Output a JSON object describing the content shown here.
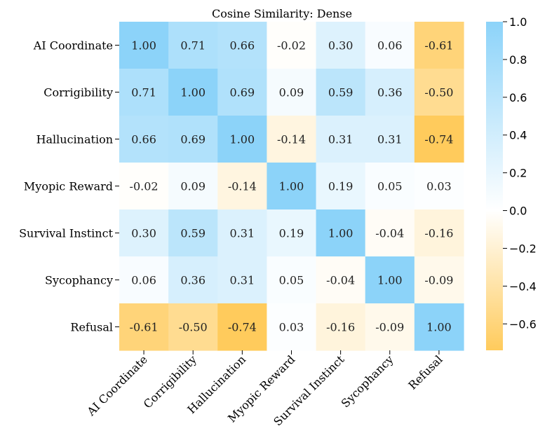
{
  "chart_data": {
    "type": "heatmap",
    "title": "Cosine Similarity: Dense",
    "row_labels": [
      "AI Coordinate",
      "Corrigibility",
      "Hallucination",
      "Myopic Reward",
      "Survival Instinct",
      "Sycophancy",
      "Refusal"
    ],
    "col_labels": [
      "AI Coordinate",
      "Corrigibility",
      "Hallucination",
      "Myopic Reward",
      "Survival Instinct",
      "Sycophancy",
      "Refusal"
    ],
    "values": [
      [
        1.0,
        0.71,
        0.66,
        -0.02,
        0.3,
        0.06,
        -0.61
      ],
      [
        0.71,
        1.0,
        0.69,
        0.09,
        0.59,
        0.36,
        -0.5
      ],
      [
        0.66,
        0.69,
        1.0,
        -0.14,
        0.31,
        0.31,
        -0.74
      ],
      [
        -0.02,
        0.09,
        -0.14,
        1.0,
        0.19,
        0.05,
        0.03
      ],
      [
        0.3,
        0.59,
        0.31,
        0.19,
        1.0,
        -0.04,
        -0.16
      ],
      [
        0.06,
        0.36,
        0.31,
        0.05,
        -0.04,
        1.0,
        -0.09
      ],
      [
        -0.61,
        -0.5,
        -0.74,
        0.03,
        -0.16,
        -0.09,
        1.0
      ]
    ],
    "value_format": "2 decimals",
    "colorbar": {
      "range": [
        -0.74,
        1.0
      ],
      "ticks": [
        "1.0",
        "0.8",
        "0.6",
        "0.4",
        "0.2",
        "0.0",
        "−0.2",
        "−0.4",
        "−0.6"
      ],
      "tick_values": [
        1.0,
        0.8,
        0.6,
        0.4,
        0.2,
        0.0,
        -0.2,
        -0.4,
        -0.6
      ],
      "colors": {
        "low": "#FFCB5C",
        "mid": "#FFFFFF",
        "high": "#8CD3F9"
      }
    }
  }
}
